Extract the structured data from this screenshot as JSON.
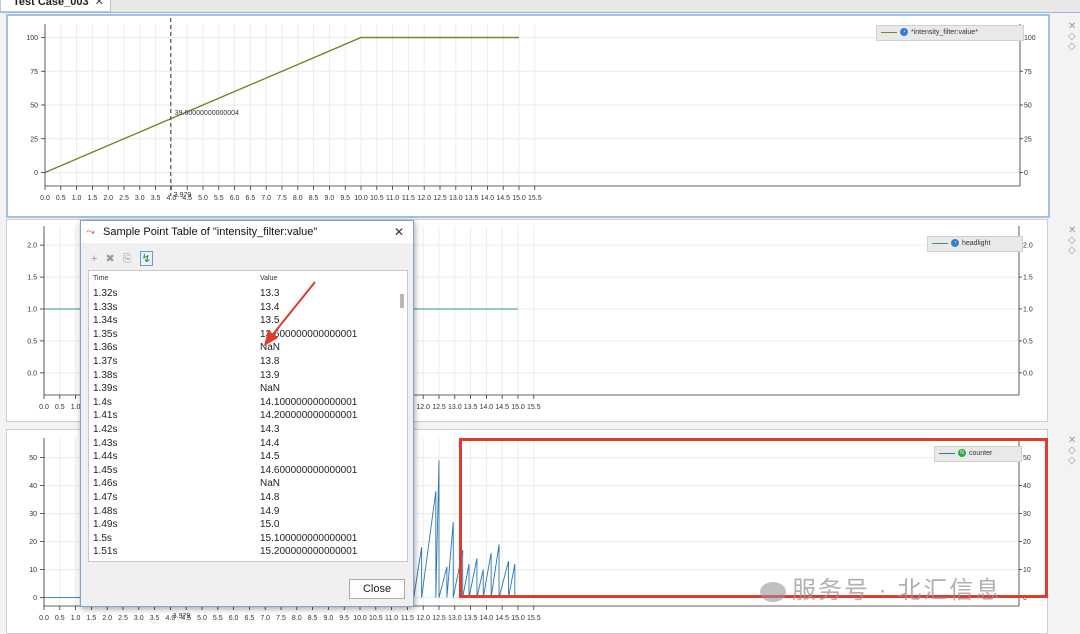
{
  "tab": {
    "label": "Test Case_003",
    "close": "✕"
  },
  "panel1": {
    "legend": "*intensity_filter:value*",
    "cursor_value": "39.60000000000004",
    "cursor_x_label": "3.979"
  },
  "panel2": {
    "legend": "headlight"
  },
  "panel3": {
    "legend": "counter",
    "cursor_x_label": "3.979"
  },
  "x_ticks": [
    "0.0",
    "0.5",
    "1.0",
    "1.5",
    "2.0",
    "2.5",
    "3.0",
    "3.5",
    "4.0",
    "4.5",
    "5.0",
    "5.5",
    "6.0",
    "6.5",
    "7.0",
    "7.5",
    "8.0",
    "8.5",
    "9.0",
    "9.5",
    "10.0",
    "10.5",
    "11.0",
    "11.5",
    "12.0",
    "12.5",
    "13.0",
    "13.5",
    "14.0",
    "14.5",
    "15.0",
    "15.5"
  ],
  "colors": {
    "series1": "#6b8a2a",
    "series2": "#2e9b6e",
    "series3": "#2a76b0",
    "cursor": "#555555",
    "highlight": "#e03b2c"
  },
  "chart_data": [
    {
      "type": "line",
      "series": [
        {
          "name": "*intensity_filter:value*",
          "x": [
            0,
            10,
            15
          ],
          "y": [
            0,
            100,
            100
          ]
        }
      ],
      "ylim": [
        -10,
        110
      ],
      "xlim": [
        0,
        15.5
      ],
      "y_ticks": [
        "0",
        "25",
        "50",
        "75",
        "100"
      ]
    },
    {
      "type": "line",
      "series": [
        {
          "name": "headlight",
          "x": [
            0,
            15
          ],
          "y": [
            1,
            1
          ]
        }
      ],
      "ylim": [
        -0.3,
        2.3
      ],
      "xlim": [
        0,
        15.5
      ],
      "y_ticks": [
        "0.0",
        "0.5",
        "1.0",
        "1.5",
        "2.0"
      ]
    },
    {
      "type": "line",
      "series": [
        {
          "name": "counter",
          "x": [
            0,
            7,
            7.9,
            8,
            9.1,
            9.9,
            11.2,
            12.5,
            15
          ],
          "y": [
            0,
            0,
            37,
            0,
            20,
            22,
            25,
            49,
            12
          ]
        }
      ],
      "ylim": [
        -3,
        57
      ],
      "xlim": [
        0,
        15.5
      ],
      "y_ticks": [
        "0",
        "10",
        "20",
        "30",
        "40",
        "50"
      ]
    }
  ],
  "dialog": {
    "title": "Sample Point Table of \"intensity_filter:value\"",
    "close_x": "✕",
    "tools": {
      "add": "+",
      "remove": "✖",
      "copy": "⎘",
      "export": "↯"
    },
    "columns": {
      "time": "Time",
      "value": "Value"
    },
    "rows": [
      {
        "time": "1.32s",
        "value": "13.3"
      },
      {
        "time": "1.33s",
        "value": "13.4"
      },
      {
        "time": "1.34s",
        "value": "13.5"
      },
      {
        "time": "1.35s",
        "value": "13.600000000000001"
      },
      {
        "time": "1.36s",
        "value": "NaN"
      },
      {
        "time": "1.37s",
        "value": "13.8"
      },
      {
        "time": "1.38s",
        "value": "13.9"
      },
      {
        "time": "1.39s",
        "value": "NaN"
      },
      {
        "time": "1.4s",
        "value": "14.100000000000001"
      },
      {
        "time": "1.41s",
        "value": "14.200000000000001"
      },
      {
        "time": "1.42s",
        "value": "14.3"
      },
      {
        "time": "1.43s",
        "value": "14.4"
      },
      {
        "time": "1.44s",
        "value": "14.5"
      },
      {
        "time": "1.45s",
        "value": "14.600000000000001"
      },
      {
        "time": "1.46s",
        "value": "NaN"
      },
      {
        "time": "1.47s",
        "value": "14.8"
      },
      {
        "time": "1.48s",
        "value": "14.9"
      },
      {
        "time": "1.49s",
        "value": "15.0"
      },
      {
        "time": "1.5s",
        "value": "15.100000000000001"
      },
      {
        "time": "1.51s",
        "value": "15.200000000000001"
      }
    ],
    "close_button": "Close"
  },
  "watermark": "服务号 · 北汇信息"
}
